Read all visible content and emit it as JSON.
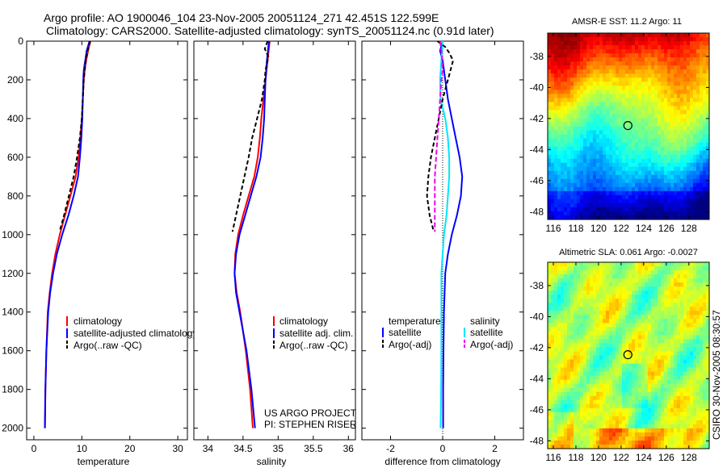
{
  "figure": {
    "title_line1": "Argo profile: AO 1900046_104 23-Nov-2005 20051124_271 42.451S 122.599E",
    "title_line2": "Climatology: CARS2000. Satellite-adjusted climatology: synTS_20051124.nc (0.91d later)",
    "credit_side": "CSIRO 30-Nov-2005 08:30:57",
    "colors": {
      "red": "#ff0000",
      "blue": "#0000ff",
      "black": "#000000",
      "cyan": "#00e5ff",
      "magenta": "#ee00ee"
    }
  },
  "chart_data": [
    {
      "type": "line",
      "name": "temperature-profile",
      "xlabel": "temperature",
      "ylabel": "",
      "xlim": [
        -1.5,
        32
      ],
      "ylim": [
        2060,
        0
      ],
      "xticks": [
        "0",
        "10",
        "20",
        "30"
      ],
      "yticks": [
        "0",
        "200",
        "400",
        "600",
        "800",
        "1000",
        "1200",
        "1400",
        "1600",
        "1800",
        "2000"
      ],
      "legend": [
        "climatology",
        "satellite-adjusted climatology",
        "Argo(..raw -QC)"
      ],
      "series": [
        {
          "name": "climatology",
          "color": "#ff0000",
          "depth": [
            0,
            50,
            100,
            150,
            200,
            300,
            400,
            500,
            600,
            700,
            800,
            900,
            1000,
            1100,
            1200,
            1300,
            1400,
            1600,
            1800,
            2000
          ],
          "values": [
            11.8,
            11.3,
            10.9,
            10.6,
            10.4,
            10.2,
            10.0,
            9.7,
            9.3,
            8.7,
            7.6,
            6.5,
            5.4,
            4.5,
            3.8,
            3.3,
            2.9,
            2.6,
            2.4,
            2.3
          ]
        },
        {
          "name": "satellite-adjusted climatology",
          "color": "#0000ff",
          "depth": [
            0,
            50,
            100,
            150,
            200,
            300,
            400,
            500,
            600,
            700,
            800,
            900,
            1000,
            1100,
            1200,
            1300,
            1400,
            1600,
            1800,
            2000
          ],
          "values": [
            11.6,
            11.0,
            10.7,
            10.4,
            10.3,
            10.2,
            10.1,
            9.9,
            9.6,
            9.2,
            8.3,
            7.2,
            5.9,
            4.8,
            4.0,
            3.4,
            3.0,
            2.6,
            2.4,
            2.3
          ]
        },
        {
          "name": "Argo(..raw -QC)",
          "color": "#000000",
          "depth": [
            0,
            50,
            100,
            150,
            200,
            300,
            400,
            500,
            600,
            700,
            800,
            900,
            980
          ],
          "values": [
            11.7,
            11.2,
            10.8,
            10.6,
            10.4,
            10.2,
            10.0,
            9.6,
            9.0,
            8.3,
            7.3,
            6.3,
            5.4
          ]
        }
      ]
    },
    {
      "type": "line",
      "name": "salinity-profile",
      "xlabel": "salinity",
      "ylabel": "",
      "xlim": [
        33.8,
        36.1
      ],
      "ylim": [
        2060,
        0
      ],
      "xticks": [
        "34",
        "34.5",
        "35",
        "35.5",
        "36"
      ],
      "legend": [
        "climatology",
        "satellite adj. clim.",
        "Argo(..raw -QC)"
      ],
      "annotations": [
        "US ARGO PROJECT",
        "PI: STEPHEN RISER"
      ],
      "series": [
        {
          "name": "climatology",
          "color": "#ff0000",
          "depth": [
            0,
            100,
            200,
            300,
            400,
            500,
            600,
            700,
            800,
            900,
            1000,
            1100,
            1200,
            1300,
            1400,
            1500,
            1600,
            1800,
            2000
          ],
          "values": [
            34.88,
            34.85,
            34.82,
            34.79,
            34.76,
            34.74,
            34.71,
            34.66,
            34.58,
            34.5,
            34.43,
            34.39,
            34.38,
            34.41,
            34.46,
            34.5,
            34.54,
            34.6,
            34.64
          ]
        },
        {
          "name": "satellite adj. clim.",
          "color": "#0000ff",
          "depth": [
            0,
            100,
            200,
            300,
            400,
            500,
            600,
            700,
            800,
            900,
            1000,
            1100,
            1200,
            1300,
            1400,
            1500,
            1600,
            1800,
            2000
          ],
          "values": [
            34.87,
            34.84,
            34.82,
            34.81,
            34.8,
            34.78,
            34.75,
            34.69,
            34.61,
            34.53,
            34.45,
            34.4,
            34.38,
            34.4,
            34.45,
            34.5,
            34.55,
            34.62,
            34.67
          ]
        },
        {
          "name": "Argo(..raw -QC)",
          "color": "#000000",
          "depth": [
            0,
            40,
            80,
            150,
            200,
            300,
            400,
            500,
            600,
            700,
            800,
            900,
            985
          ],
          "values": [
            34.85,
            34.81,
            34.86,
            34.82,
            34.81,
            34.77,
            34.7,
            34.63,
            34.58,
            34.52,
            34.46,
            34.4,
            34.35
          ]
        }
      ]
    },
    {
      "type": "line",
      "name": "difference-profile",
      "xlabel": "difference from climatology",
      "ylabel": "",
      "xlim": [
        -3.1,
        3.1
      ],
      "ylim": [
        2060,
        0
      ],
      "xticks": [
        "-2",
        "0",
        "2"
      ],
      "legend_groups": [
        "temperature",
        "salinity"
      ],
      "legend": [
        "satellite",
        "Argo(-adj)",
        "satellite",
        "Argo(-adj)"
      ],
      "series": [
        {
          "name": "temperature satellite",
          "color": "#0000ff",
          "depth": [
            0,
            50,
            100,
            200,
            300,
            400,
            500,
            600,
            700,
            800,
            900,
            1000,
            1100,
            1200,
            1400,
            1600,
            1800,
            2000
          ],
          "values": [
            0.0,
            -0.1,
            0.0,
            0.1,
            0.2,
            0.35,
            0.5,
            0.65,
            0.75,
            0.7,
            0.55,
            0.35,
            0.2,
            0.1,
            0.05,
            0.03,
            0.02,
            0.02
          ]
        },
        {
          "name": "salinity satellite",
          "color": "#00e5ff",
          "depth": [
            0,
            100,
            200,
            300,
            400,
            500,
            600,
            700,
            800,
            900,
            1000,
            1200,
            1400,
            1600,
            1800,
            2000
          ],
          "values": [
            0.0,
            -0.05,
            -0.1,
            -0.08,
            0.1,
            0.2,
            0.25,
            0.25,
            0.2,
            0.15,
            0.05,
            -0.05,
            -0.05,
            -0.05,
            -0.06,
            -0.08
          ]
        },
        {
          "name": "temperature Argo(-adj)",
          "color": "#000000",
          "depth": [
            0,
            30,
            60,
            100,
            150,
            200,
            300,
            400,
            500,
            600,
            700,
            800,
            900,
            980
          ],
          "values": [
            -0.2,
            0.1,
            0.25,
            0.4,
            0.3,
            0.2,
            0.0,
            -0.15,
            -0.3,
            -0.45,
            -0.55,
            -0.6,
            -0.5,
            -0.35
          ]
        },
        {
          "name": "salinity Argo(-adj)",
          "color": "#ee00ee",
          "depth": [
            0,
            50,
            100,
            150,
            200,
            300,
            400,
            500,
            600,
            700,
            800,
            900,
            985
          ],
          "values": [
            -0.1,
            -0.05,
            -0.02,
            0.0,
            -0.05,
            -0.1,
            -0.15,
            -0.2,
            -0.25,
            -0.3,
            -0.3,
            -0.3,
            -0.3
          ]
        }
      ]
    },
    {
      "type": "heatmap",
      "name": "amsr-e-sst-map",
      "title": "AMSR-E SST: 11.2 Argo: 11",
      "xlim": [
        115.5,
        129.8
      ],
      "ylim": [
        -48.5,
        -36.5
      ],
      "xticks": [
        "116",
        "118",
        "120",
        "122",
        "124",
        "126",
        "128"
      ],
      "yticks": [
        "-38",
        "-40",
        "-42",
        "-44",
        "-46",
        "-48"
      ],
      "marker": {
        "lon": 122.599,
        "lat": -42.451
      },
      "colormap": "jet"
    },
    {
      "type": "heatmap",
      "name": "altimetric-sla-map",
      "title": "Altimetric SLA: 0.061 Argo: -0.0027",
      "xlim": [
        115.5,
        129.8
      ],
      "ylim": [
        -48.5,
        -36.5
      ],
      "xticks": [
        "116",
        "118",
        "120",
        "122",
        "124",
        "126",
        "128"
      ],
      "yticks": [
        "-38",
        "-40",
        "-42",
        "-44",
        "-46",
        "-48"
      ],
      "marker": {
        "lon": 122.599,
        "lat": -42.451
      },
      "colormap": "jet"
    }
  ]
}
